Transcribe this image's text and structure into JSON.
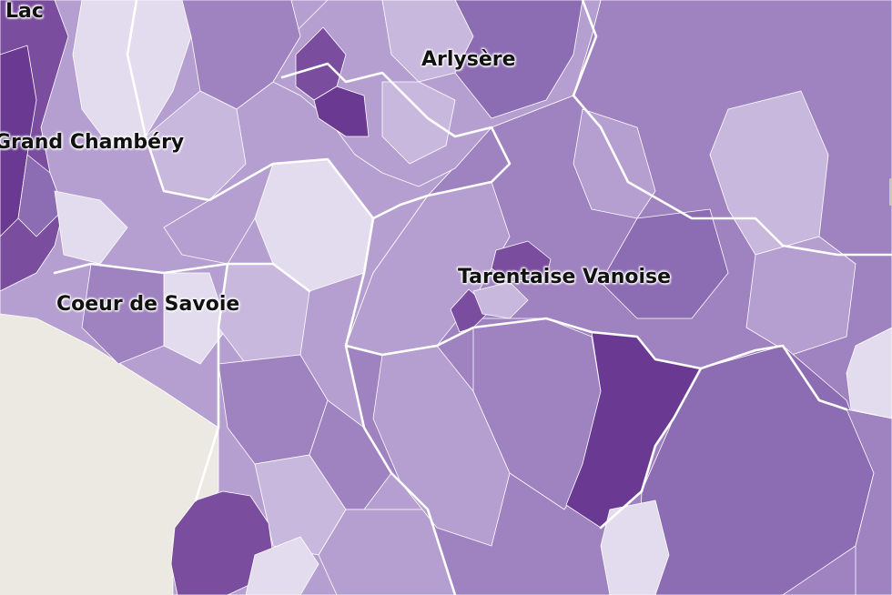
{
  "map": {
    "labels": {
      "lac": "Lac",
      "grand_chambery": "Grand Chambéry",
      "arlysere": "Arlysère",
      "coeur_de_savoie": "Coeur de Savoie",
      "tarentaise_vanoise": "Tarentaise Vanoise"
    },
    "palette": {
      "background": "#ece9e2",
      "very_light": "#e3dbee",
      "light": "#c9b8dd",
      "medium_light": "#b59fd0",
      "medium": "#9f82c0",
      "medium_dark": "#8c6cb3",
      "dark": "#7a4d9e",
      "very_dark": "#6a3a92",
      "border": "#ffffff"
    }
  }
}
